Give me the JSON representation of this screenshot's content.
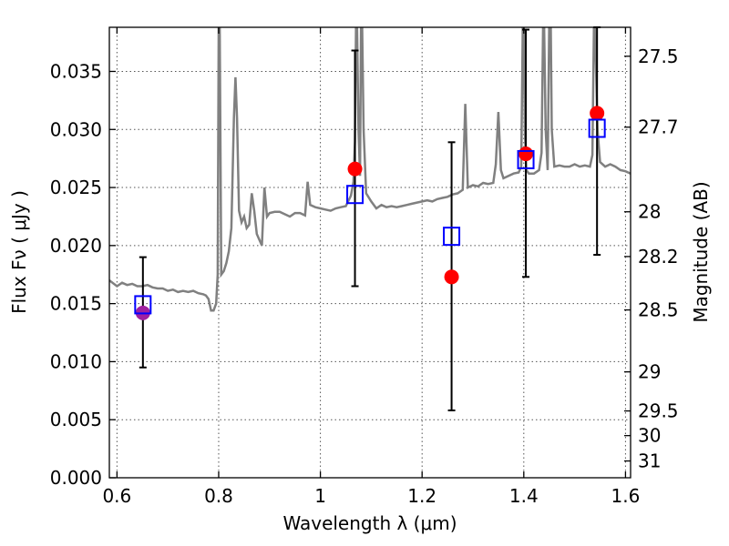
{
  "chart_data": {
    "type": "scatter",
    "xlabel": "Wavelength  λ (μm)",
    "ylabel": "Flux  Fν  ( μJy )",
    "ylabel_right": "Magnitude (AB)",
    "xlim": [
      0.585,
      1.61
    ],
    "ylim": [
      0.0,
      0.0388
    ],
    "grid": true,
    "x_ticks": [
      0.6,
      0.8,
      1.0,
      1.2,
      1.4,
      1.6
    ],
    "x_tick_labels": [
      "0.6",
      "0.8",
      "1",
      "1.2",
      "1.4",
      "1.6"
    ],
    "y_ticks": [
      0.0,
      0.005,
      0.01,
      0.015,
      0.02,
      0.025,
      0.03,
      0.035
    ],
    "y_tick_labels": [
      "0.000",
      "0.005",
      "0.010",
      "0.015",
      "0.020",
      "0.025",
      "0.030",
      "0.035"
    ],
    "right_ticks": [
      {
        "label": "27.5",
        "value": 27.5
      },
      {
        "label": "27.7",
        "value": 27.7
      },
      {
        "label": "28",
        "value": 28.0
      },
      {
        "label": "28.2",
        "value": 28.2
      },
      {
        "label": "28.5",
        "value": 28.5
      },
      {
        "label": "29",
        "value": 29.0
      },
      {
        "label": "29.5",
        "value": 29.5
      },
      {
        "label": "30",
        "value": 30.0
      },
      {
        "label": "31",
        "value": 31.0
      }
    ],
    "model_spectrum": {
      "color": "#808080",
      "x": [
        0.585,
        0.6,
        0.61,
        0.62,
        0.63,
        0.64,
        0.65,
        0.66,
        0.67,
        0.68,
        0.69,
        0.7,
        0.71,
        0.72,
        0.73,
        0.74,
        0.75,
        0.76,
        0.77,
        0.775,
        0.78,
        0.785,
        0.79,
        0.795,
        0.798,
        0.8,
        0.802,
        0.805,
        0.81,
        0.815,
        0.82,
        0.825,
        0.83,
        0.833,
        0.836,
        0.84,
        0.845,
        0.85,
        0.855,
        0.86,
        0.865,
        0.87,
        0.875,
        0.88,
        0.885,
        0.89,
        0.895,
        0.9,
        0.91,
        0.92,
        0.93,
        0.94,
        0.95,
        0.96,
        0.97,
        0.975,
        0.98,
        0.99,
        1.0,
        1.01,
        1.02,
        1.03,
        1.04,
        1.05,
        1.06,
        1.065,
        1.068,
        1.07,
        1.072,
        1.075,
        1.078,
        1.08,
        1.082,
        1.085,
        1.09,
        1.1,
        1.11,
        1.12,
        1.13,
        1.14,
        1.15,
        1.16,
        1.17,
        1.18,
        1.19,
        1.2,
        1.21,
        1.22,
        1.23,
        1.24,
        1.25,
        1.26,
        1.27,
        1.28,
        1.285,
        1.29,
        1.3,
        1.31,
        1.32,
        1.33,
        1.34,
        1.345,
        1.35,
        1.355,
        1.36,
        1.37,
        1.38,
        1.39,
        1.395,
        1.398,
        1.4,
        1.402,
        1.405,
        1.41,
        1.42,
        1.43,
        1.435,
        1.438,
        1.44,
        1.443,
        1.447,
        1.45,
        1.453,
        1.455,
        1.46,
        1.47,
        1.48,
        1.49,
        1.5,
        1.51,
        1.52,
        1.53,
        1.535,
        1.538,
        1.54,
        1.545,
        1.55,
        1.56,
        1.57,
        1.58,
        1.59,
        1.6,
        1.61
      ],
      "y": [
        0.017,
        0.0165,
        0.0168,
        0.0166,
        0.0167,
        0.0165,
        0.0165,
        0.0166,
        0.0164,
        0.0163,
        0.0163,
        0.0161,
        0.0162,
        0.016,
        0.0161,
        0.016,
        0.0161,
        0.0159,
        0.0158,
        0.0157,
        0.0154,
        0.0144,
        0.0144,
        0.015,
        0.0175,
        0.039,
        0.039,
        0.0175,
        0.0178,
        0.0185,
        0.0195,
        0.0215,
        0.031,
        0.0345,
        0.031,
        0.023,
        0.022,
        0.0225,
        0.0215,
        0.0218,
        0.0245,
        0.023,
        0.021,
        0.0205,
        0.02,
        0.025,
        0.0225,
        0.0228,
        0.0229,
        0.0229,
        0.0227,
        0.0225,
        0.0228,
        0.0228,
        0.0226,
        0.0255,
        0.0235,
        0.0233,
        0.0232,
        0.0231,
        0.023,
        0.0232,
        0.0233,
        0.0234,
        0.0243,
        0.0255,
        0.029,
        0.039,
        0.039,
        0.03,
        0.026,
        0.039,
        0.039,
        0.03,
        0.0245,
        0.0238,
        0.0232,
        0.0235,
        0.0233,
        0.0234,
        0.0233,
        0.0234,
        0.0235,
        0.0236,
        0.0237,
        0.0238,
        0.0239,
        0.0238,
        0.024,
        0.0241,
        0.0242,
        0.0244,
        0.0245,
        0.0248,
        0.0322,
        0.025,
        0.0252,
        0.0251,
        0.0254,
        0.0253,
        0.0254,
        0.027,
        0.0315,
        0.0265,
        0.0258,
        0.026,
        0.0262,
        0.0263,
        0.0268,
        0.039,
        0.039,
        0.03,
        0.0265,
        0.0262,
        0.0262,
        0.0265,
        0.028,
        0.039,
        0.039,
        0.03,
        0.0265,
        0.039,
        0.039,
        0.03,
        0.0268,
        0.0269,
        0.0268,
        0.0268,
        0.027,
        0.0268,
        0.0269,
        0.0268,
        0.0278,
        0.039,
        0.039,
        0.03,
        0.0272,
        0.0268,
        0.027,
        0.0268,
        0.0265,
        0.0264,
        0.0262
      ]
    },
    "measured_points": {
      "color": "#ff0000",
      "x": [
        0.651,
        1.068,
        1.258,
        1.404,
        1.544
      ],
      "y": [
        0.0142,
        0.0266,
        0.0173,
        0.0279,
        0.0314
      ]
    },
    "model_photometry": {
      "color": "#0000ff",
      "x": [
        0.651,
        1.068,
        1.258,
        1.404,
        1.544
      ],
      "y": [
        0.0149,
        0.0244,
        0.0208,
        0.0274,
        0.0301
      ]
    },
    "error_bars": {
      "color": "#000000",
      "x": [
        0.651,
        1.068,
        1.258,
        1.404,
        1.544
      ],
      "ylow": [
        0.0095,
        0.0165,
        0.0058,
        0.0173,
        0.0192
      ],
      "yhigh": [
        0.019,
        0.0368,
        0.0289,
        0.0386,
        0.0388
      ]
    },
    "overlap_marker_color": "#a020a0"
  }
}
